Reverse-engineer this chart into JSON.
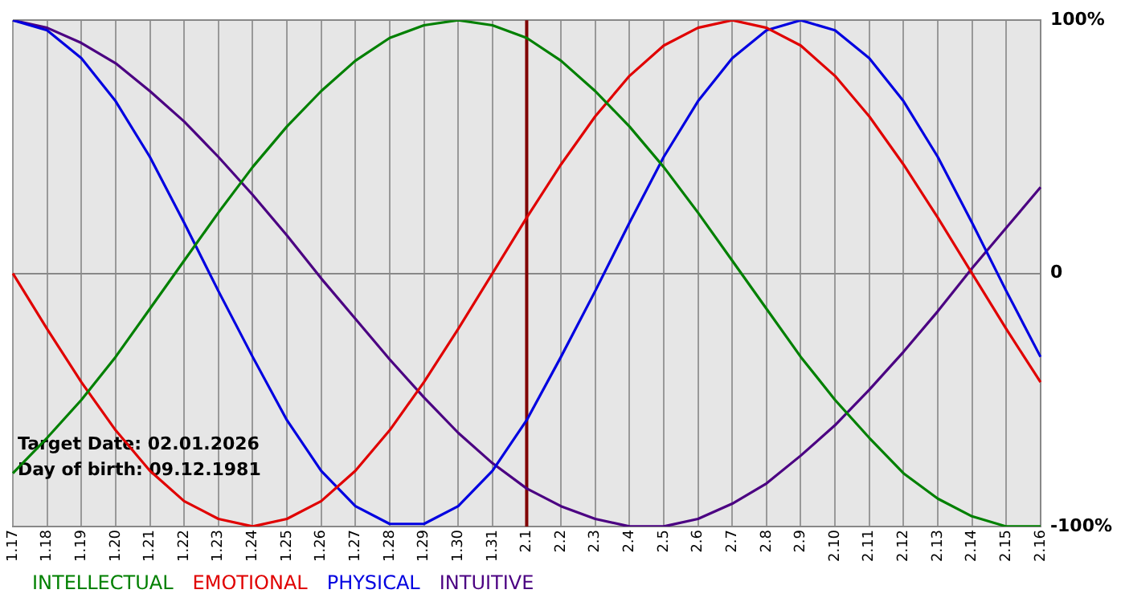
{
  "chart_data": {
    "type": "line",
    "categories": [
      "1.17",
      "1.18",
      "1.19",
      "1.20",
      "1.21",
      "1.22",
      "1.23",
      "1.24",
      "1.25",
      "1.26",
      "1.27",
      "1.28",
      "1.29",
      "1.30",
      "1.31",
      "2.1",
      "2.2",
      "2.3",
      "2.4",
      "2.5",
      "2.6",
      "2.7",
      "2.8",
      "2.9",
      "2.10",
      "2.11",
      "2.12",
      "2.13",
      "2.14",
      "2.15",
      "2.16"
    ],
    "series": [
      {
        "name": "INTELLECTUAL",
        "color": "#008000",
        "values": [
          -79,
          -65,
          -50,
          -33,
          -14,
          5,
          24,
          42,
          58,
          72,
          84,
          93,
          98,
          100,
          98,
          93,
          84,
          72,
          58,
          42,
          24,
          5,
          -14,
          -33,
          -50,
          -65,
          -79,
          -89,
          -96,
          -100,
          -100
        ]
      },
      {
        "name": "EMOTIONAL",
        "color": "#e00000",
        "values": [
          0,
          -22,
          -43,
          -62,
          -78,
          -90,
          -97,
          -100,
          -97,
          -90,
          -78,
          -62,
          -43,
          -22,
          0,
          22,
          43,
          62,
          78,
          90,
          97,
          100,
          97,
          90,
          78,
          62,
          43,
          22,
          0,
          -22,
          -43
        ]
      },
      {
        "name": "PHYSICAL",
        "color": "#0000e0",
        "values": [
          100,
          96,
          85,
          68,
          46,
          20,
          -7,
          -33,
          -58,
          -78,
          -92,
          -99,
          -99,
          -92,
          -78,
          -58,
          -33,
          -7,
          20,
          46,
          68,
          85,
          96,
          100,
          96,
          85,
          68,
          46,
          20,
          -7,
          -33
        ]
      },
      {
        "name": "INTUITIVE",
        "color": "#4b0082",
        "values": [
          100,
          97,
          91,
          83,
          72,
          60,
          46,
          31,
          15,
          -2,
          -18,
          -34,
          -49,
          -63,
          -75,
          -85,
          -92,
          -97,
          -100,
          -100,
          -97,
          -91,
          -83,
          -72,
          -60,
          -46,
          -31,
          -15,
          2,
          18,
          34
        ]
      }
    ],
    "ylim": [
      -100,
      100
    ],
    "yticks": [
      {
        "value": 100,
        "label": "100%"
      },
      0,
      {
        "value": -100,
        "label": "-100%"
      }
    ],
    "ref_lines": [
      {
        "axis": "x",
        "value": "2.1",
        "color": "#800000"
      }
    ],
    "annotations": [
      "Target Date: 02.01.2026",
      "Day of birth: 09.12.1981"
    ],
    "grid": true,
    "legend": "bottom left",
    "marker": "none",
    "line_style": "solid"
  }
}
